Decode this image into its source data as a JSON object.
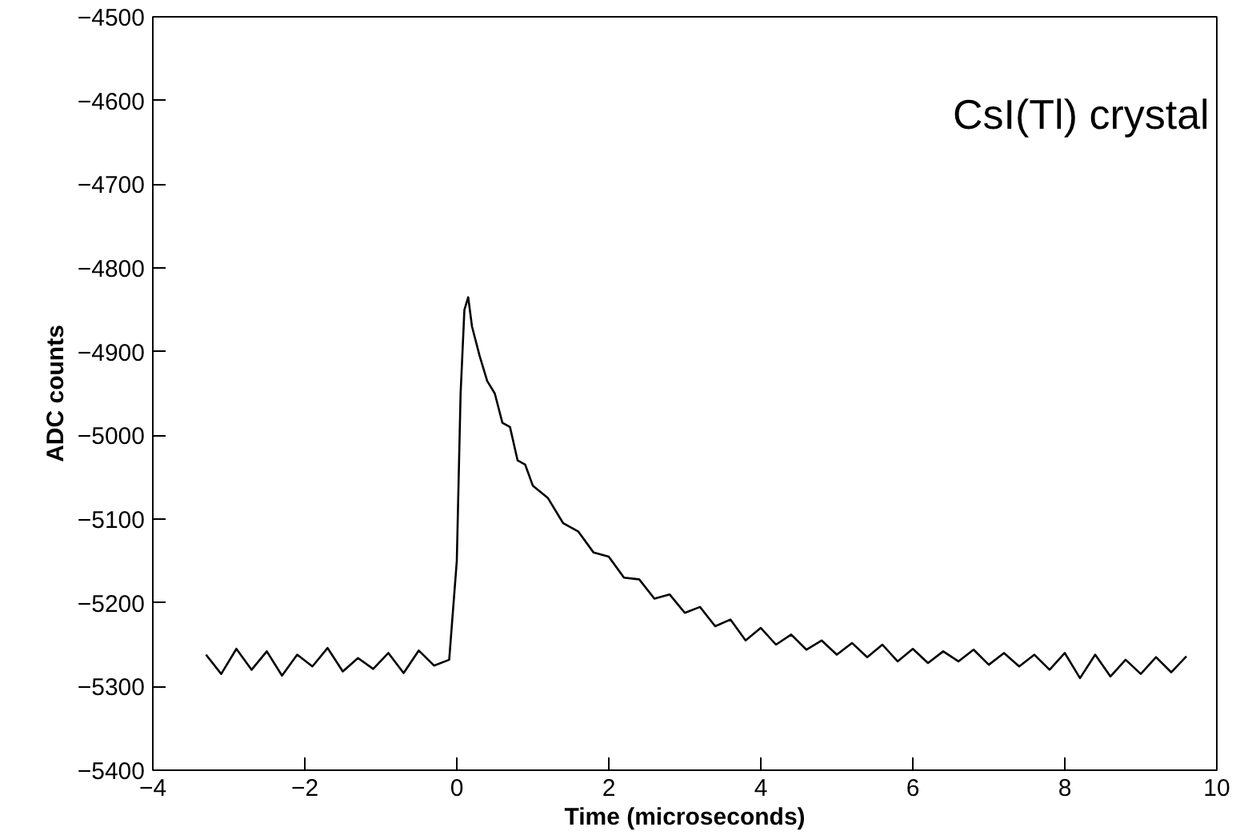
{
  "chart_data": {
    "type": "line",
    "xlabel": "Time (microseconds)",
    "ylabel": "ADC counts",
    "annotations": [
      "CsI(Tl) crystal"
    ],
    "xlim": [
      -4,
      10
    ],
    "xticks": [
      -4,
      -2,
      0,
      2,
      4,
      6,
      8,
      10
    ],
    "ylim": [
      -5400,
      -4500
    ],
    "yticks": [
      -5400,
      -5300,
      -5200,
      -5100,
      -5000,
      -4900,
      -4800,
      -4700,
      -4600,
      -4500
    ],
    "grid": false,
    "marker": "none",
    "line_style": "solid",
    "series": [
      {
        "color": "#000000",
        "x": [
          -3.3,
          -3.1,
          -2.9,
          -2.7,
          -2.5,
          -2.3,
          -2.1,
          -1.9,
          -1.7,
          -1.5,
          -1.3,
          -1.1,
          -0.9,
          -0.7,
          -0.5,
          -0.3,
          -0.1,
          0.0,
          0.05,
          0.1,
          0.15,
          0.2,
          0.3,
          0.4,
          0.5,
          0.6,
          0.7,
          0.8,
          0.9,
          1.0,
          1.2,
          1.4,
          1.6,
          1.8,
          2.0,
          2.2,
          2.4,
          2.6,
          2.8,
          3.0,
          3.2,
          3.4,
          3.6,
          3.8,
          4.0,
          4.2,
          4.4,
          4.6,
          4.8,
          5.0,
          5.2,
          5.4,
          5.6,
          5.8,
          6.0,
          6.2,
          6.4,
          6.6,
          6.8,
          7.0,
          7.2,
          7.4,
          7.6,
          7.8,
          8.0,
          8.2,
          8.4,
          8.6,
          8.8,
          9.0,
          9.2,
          9.4,
          9.6
        ],
        "values": [
          -5262,
          -5285,
          -5255,
          -5280,
          -5258,
          -5287,
          -5262,
          -5276,
          -5254,
          -5282,
          -5266,
          -5279,
          -5260,
          -5284,
          -5257,
          -5275,
          -5268,
          -5150,
          -4950,
          -4850,
          -4835,
          -4870,
          -4905,
          -4935,
          -4950,
          -4985,
          -4990,
          -5030,
          -5035,
          -5060,
          -5075,
          -5105,
          -5115,
          -5140,
          -5145,
          -5170,
          -5172,
          -5195,
          -5190,
          -5212,
          -5205,
          -5228,
          -5220,
          -5245,
          -5230,
          -5250,
          -5238,
          -5256,
          -5245,
          -5262,
          -5248,
          -5265,
          -5250,
          -5270,
          -5255,
          -5272,
          -5258,
          -5270,
          -5256,
          -5274,
          -5260,
          -5276,
          -5262,
          -5280,
          -5260,
          -5290,
          -5262,
          -5288,
          -5268,
          -5285,
          -5265,
          -5283,
          -5264
        ]
      }
    ]
  }
}
